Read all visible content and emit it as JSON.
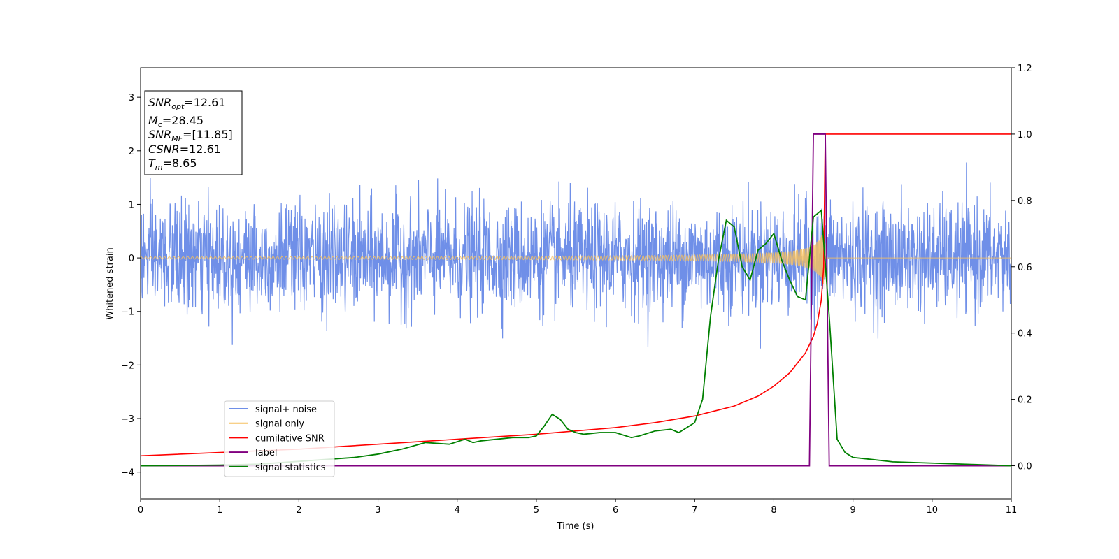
{
  "chart_data": {
    "type": "line",
    "xlabel": "Time (s)",
    "ylabel": "Whitened strain",
    "xlim": [
      0,
      11
    ],
    "ylim": [
      -4.5,
      3.55
    ],
    "y2lim": [
      -0.1,
      1.2
    ],
    "x_ticks": [
      "0",
      "1",
      "2",
      "3",
      "4",
      "5",
      "6",
      "7",
      "8",
      "9",
      "10",
      "11"
    ],
    "y_ticks": [
      "3",
      "2",
      "1",
      "0",
      "−1",
      "−2",
      "−3",
      "−4"
    ],
    "y2_ticks": [
      "1.2",
      "1.0",
      "0.8",
      "0.6",
      "0.4",
      "0.2",
      "0.0"
    ],
    "grid": false,
    "legend_position": "lower-left",
    "annotation": {
      "snr_opt": {
        "base": "SNR",
        "sub": "opt",
        "value": "=12.61"
      },
      "mc": {
        "base": "M",
        "sub": "c",
        "value": "=28.45"
      },
      "snr_mf": {
        "base": "SNR",
        "sub": "MF",
        "value": "=[11.85]"
      },
      "csnr": {
        "base": "CSNR",
        "sub": "",
        "value": "=12.61"
      },
      "tm": {
        "base": "T",
        "sub": "m",
        "value": "=8.65"
      }
    },
    "series": [
      {
        "name": "signal+ noise",
        "axis": "left",
        "color": "#6f8fe8",
        "noise_amplitude_typical": 1.1,
        "noise_amplitude_extreme": 1.85,
        "duration_s": 11
      },
      {
        "name": "signal only",
        "axis": "left",
        "color": "#f5c060",
        "chirp_peak_time": 8.65,
        "max_amplitude": 0.75
      },
      {
        "name": "cumilative SNR",
        "axis": "right",
        "color": "#ff0000",
        "x": [
          0,
          1,
          2,
          3,
          4,
          5,
          6,
          6.5,
          7,
          7.5,
          7.8,
          8.0,
          8.2,
          8.3,
          8.4,
          8.5,
          8.55,
          8.6,
          8.63,
          8.65,
          11
        ],
        "y": [
          0.03,
          0.04,
          0.05,
          0.065,
          0.08,
          0.095,
          0.115,
          0.13,
          0.15,
          0.18,
          0.21,
          0.24,
          0.28,
          0.31,
          0.34,
          0.39,
          0.43,
          0.5,
          0.6,
          1.0,
          1.0
        ]
      },
      {
        "name": "label",
        "axis": "right",
        "color": "#800080",
        "x": [
          0,
          8.45,
          8.5,
          8.65,
          8.7,
          11
        ],
        "y": [
          0,
          0,
          1,
          1,
          0,
          0
        ]
      },
      {
        "name": "signal statistics",
        "axis": "right",
        "color": "#008000",
        "x": [
          0,
          1,
          1.5,
          1.8,
          2.1,
          2.4,
          2.7,
          3.0,
          3.3,
          3.6,
          3.9,
          4.1,
          4.2,
          4.3,
          4.5,
          4.7,
          4.9,
          5.0,
          5.1,
          5.2,
          5.3,
          5.4,
          5.5,
          5.6,
          5.8,
          6.0,
          6.2,
          6.3,
          6.5,
          6.7,
          6.8,
          6.9,
          7.0,
          7.1,
          7.2,
          7.3,
          7.4,
          7.5,
          7.6,
          7.7,
          7.8,
          7.9,
          8.0,
          8.1,
          8.2,
          8.3,
          8.4,
          8.5,
          8.6,
          8.7,
          8.8,
          8.9,
          9.0,
          9.2,
          9.5,
          10,
          10.5,
          11
        ],
        "y": [
          0.0,
          0.002,
          0.005,
          0.01,
          0.015,
          0.02,
          0.025,
          0.035,
          0.05,
          0.07,
          0.065,
          0.08,
          0.07,
          0.075,
          0.08,
          0.085,
          0.085,
          0.09,
          0.12,
          0.155,
          0.14,
          0.11,
          0.1,
          0.095,
          0.1,
          0.1,
          0.085,
          0.09,
          0.105,
          0.11,
          0.1,
          0.115,
          0.13,
          0.2,
          0.45,
          0.62,
          0.74,
          0.72,
          0.6,
          0.56,
          0.65,
          0.67,
          0.7,
          0.62,
          0.56,
          0.51,
          0.5,
          0.75,
          0.77,
          0.45,
          0.08,
          0.04,
          0.025,
          0.02,
          0.012,
          0.008,
          0.004,
          0.0
        ]
      }
    ]
  }
}
